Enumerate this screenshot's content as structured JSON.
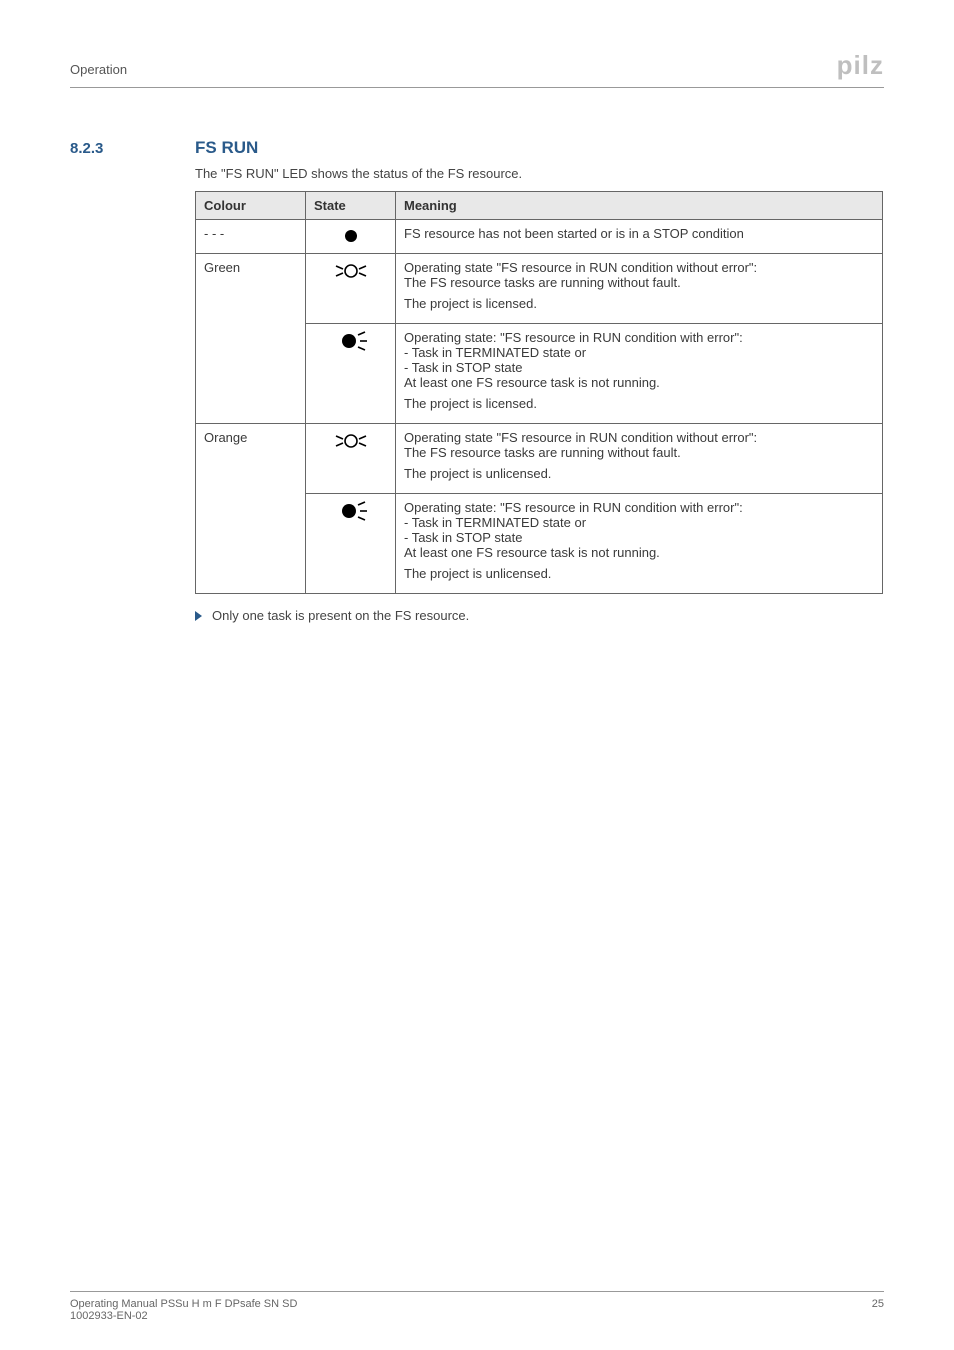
{
  "header": {
    "section_label": "Operation",
    "logo_text": "pilz"
  },
  "section": {
    "number": "8.2.3",
    "title": "FS RUN"
  },
  "intro": "The \"FS RUN\" LED shows the status of the FS resource.",
  "table": {
    "headers": {
      "colour": "Colour",
      "state": "State",
      "meaning": "Meaning"
    },
    "rows": [
      {
        "colour": "- - -",
        "icon": "dot",
        "meaning_lines": [
          "FS resource has not been started or is in a STOP condition"
        ]
      },
      {
        "colour": "Green",
        "rowspan": 2,
        "icon": "flash-outline",
        "meaning_lines": [
          "Operating state \"FS resource in RUN condition without error\":",
          "The FS resource tasks are running without fault.",
          "",
          "The project is licensed."
        ]
      },
      {
        "icon": "flash-solid",
        "meaning_lines": [
          "Operating state: \"FS resource in RUN condition with error\":",
          "- Task in TERMINATED state or",
          "- Task in STOP state",
          "At least one FS resource task is not running.",
          "",
          "The project is licensed."
        ]
      },
      {
        "colour": "Orange",
        "rowspan": 2,
        "icon": "flash-outline",
        "meaning_lines": [
          "Operating state \"FS resource in RUN condition without error\":",
          "The FS resource tasks are running without fault.",
          "",
          "The project is unlicensed."
        ]
      },
      {
        "icon": "flash-solid",
        "meaning_lines": [
          "Operating state: \"FS resource in RUN condition with error\":",
          "- Task in TERMINATED state or",
          "- Task in STOP state",
          "At least one FS resource task is not running.",
          "",
          "The project is unlicensed."
        ]
      }
    ]
  },
  "bullet": "Only one task is present on the FS resource.",
  "footer": {
    "left_line1": "Operating Manual PSSu H m F DPsafe SN SD",
    "left_line2": "1002933-EN-02",
    "page": "25"
  },
  "icons": {
    "dot_color": "#000000",
    "outline_color": "#000000",
    "solid_color": "#000000"
  }
}
